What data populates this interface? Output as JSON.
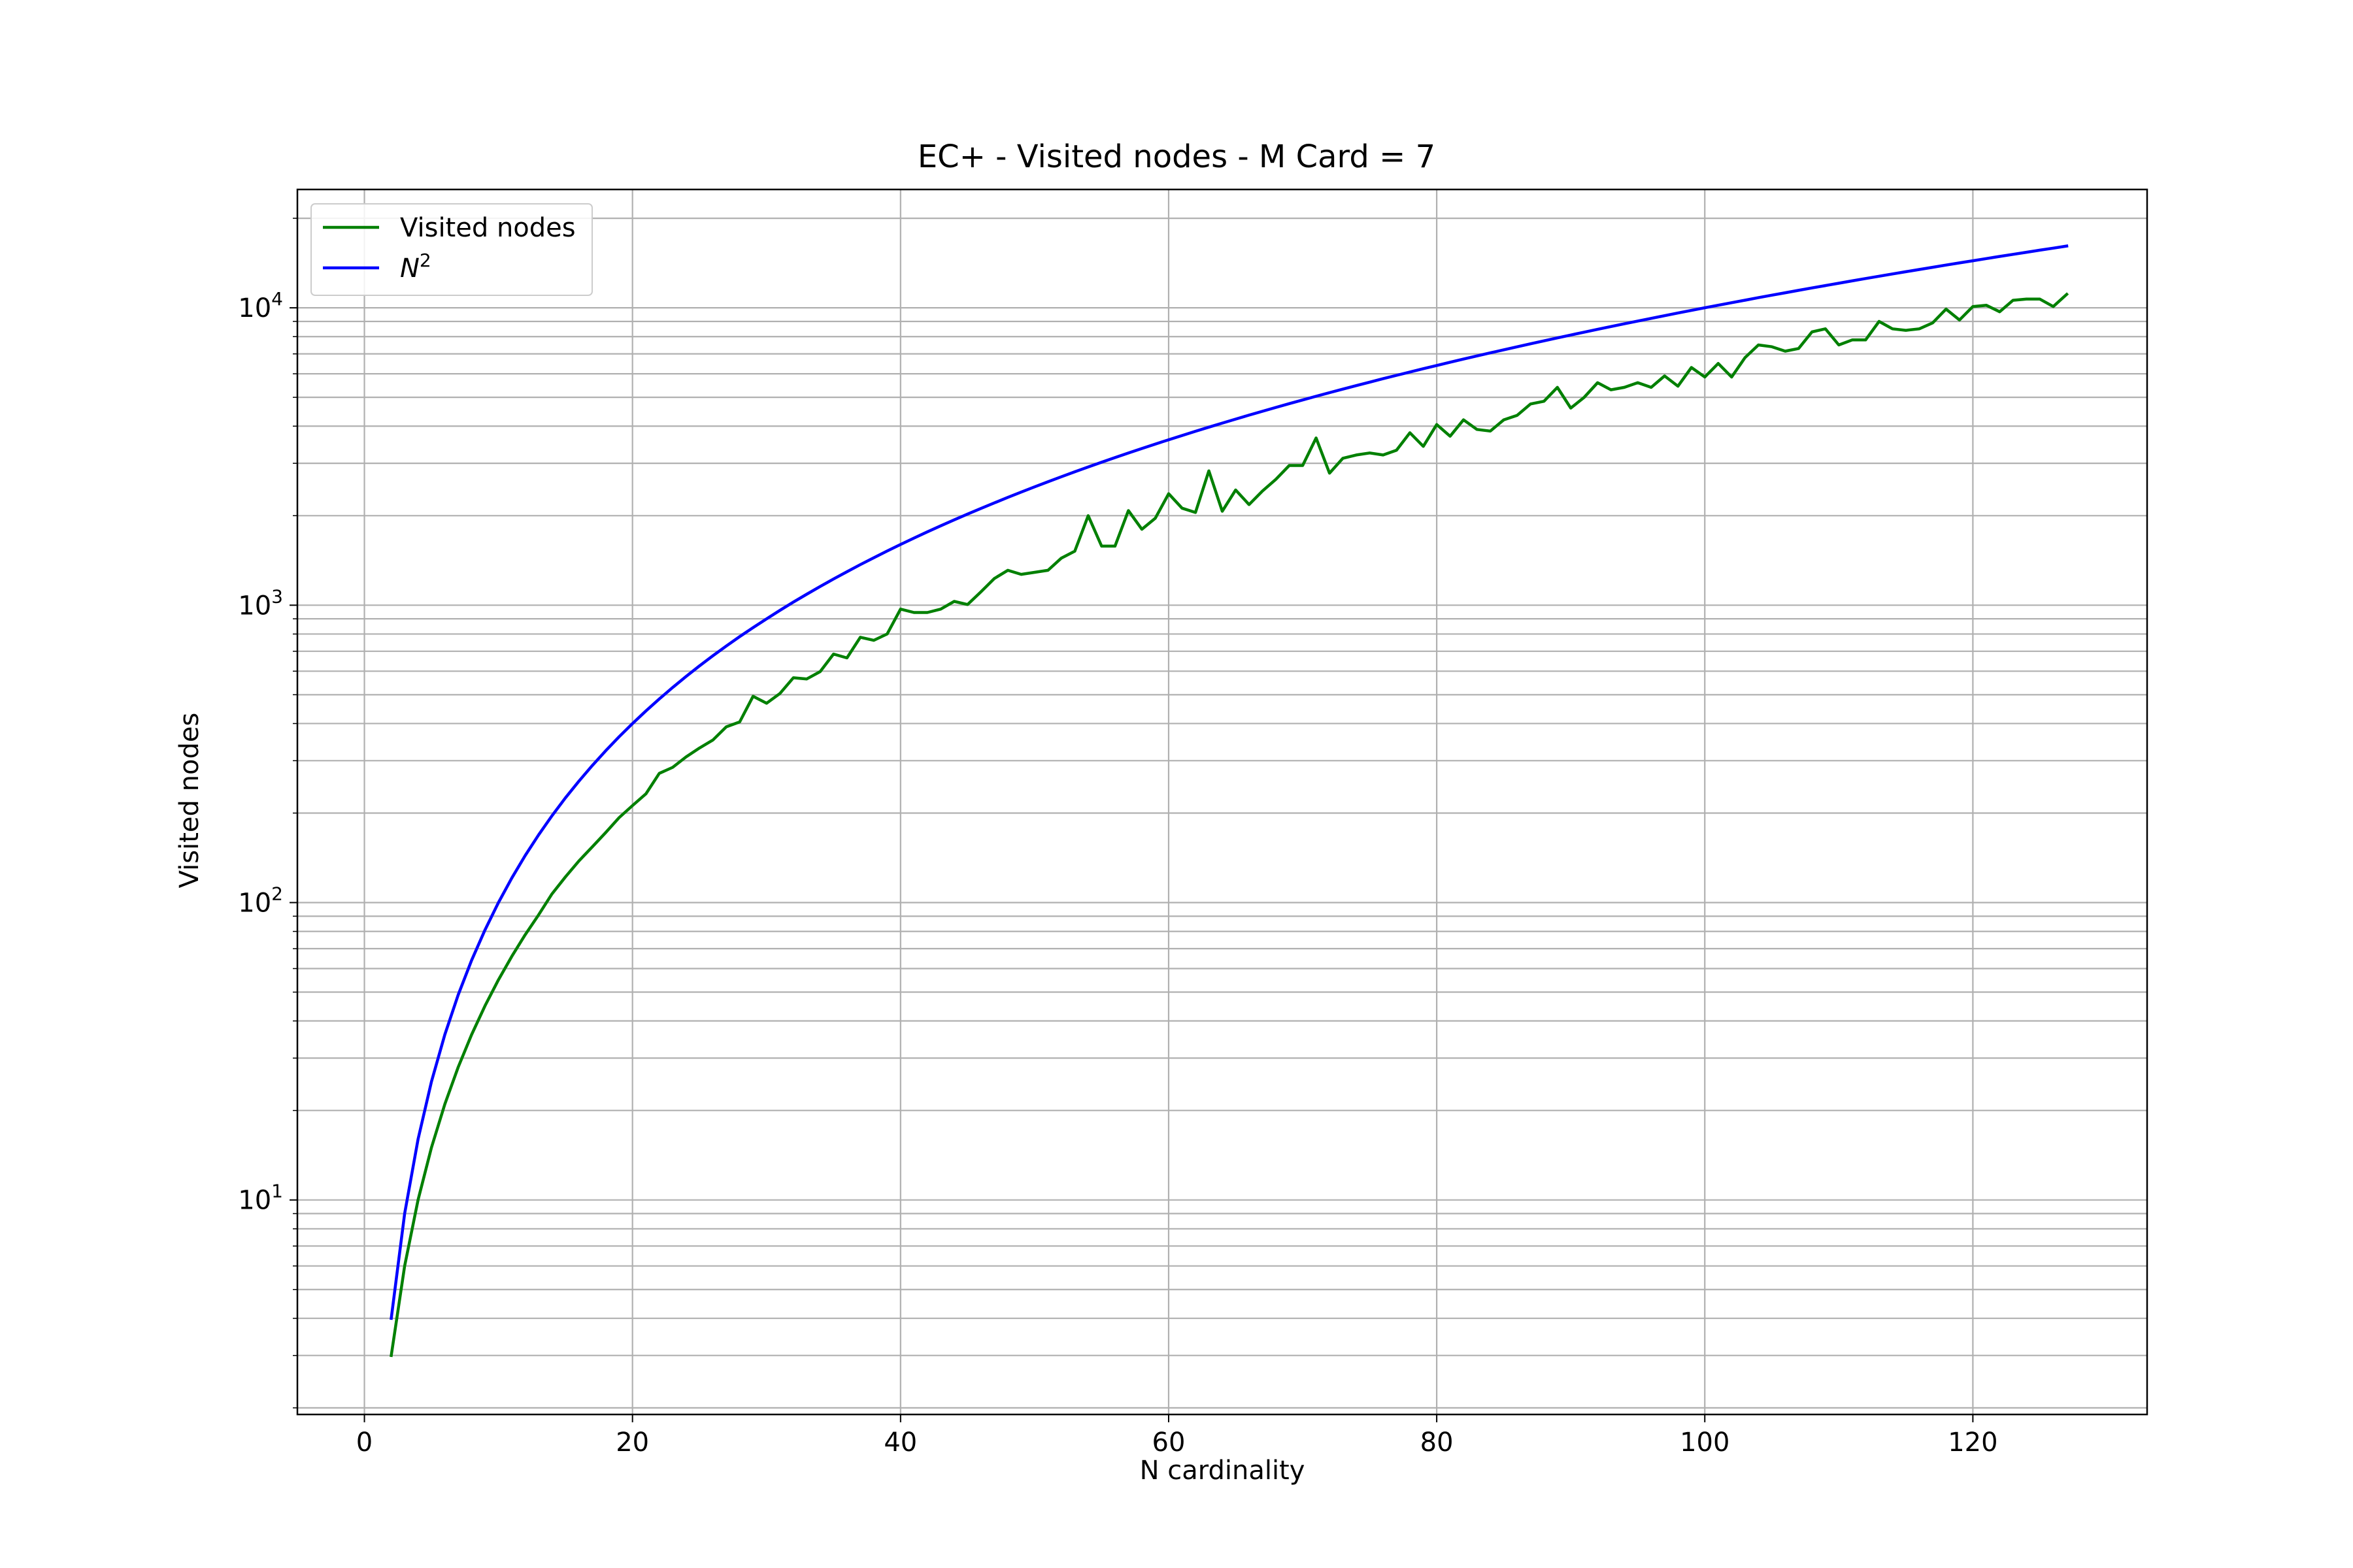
{
  "chart_data": {
    "type": "line",
    "title": "EC+ - Visited nodes - M Card = 7",
    "xlabel": "N cardinality",
    "ylabel": "Visited nodes",
    "xlim": [
      -5,
      133
    ],
    "ylim": [
      1.9,
      25000
    ],
    "yscale": "log",
    "grid": true,
    "legend_position": "top-left",
    "x_ticks": [
      0,
      20,
      40,
      60,
      80,
      100,
      120
    ],
    "x_tick_labels": [
      "0",
      "20",
      "40",
      "60",
      "80",
      "100",
      "120"
    ],
    "y_ticks": [
      10,
      100,
      1000,
      10000
    ],
    "y_tick_labels": [
      {
        "base": "10",
        "exp": "1"
      },
      {
        "base": "10",
        "exp": "2"
      },
      {
        "base": "10",
        "exp": "3"
      },
      {
        "base": "10",
        "exp": "4"
      }
    ],
    "series": [
      {
        "name": "Visited nodes",
        "color": "#008000",
        "x_start": 2,
        "x_step": 1,
        "values": [
          3,
          6,
          10,
          15,
          21,
          28,
          36,
          45,
          55,
          66,
          78,
          91,
          107,
          122,
          138,
          154,
          172,
          193,
          212,
          232,
          272,
          285,
          309,
          331,
          352,
          390,
          405,
          494,
          468,
          505,
          570,
          565,
          598,
          685,
          665,
          780,
          762,
          800,
          970,
          945,
          945,
          970,
          1030,
          1005,
          1110,
          1230,
          1310,
          1270,
          1290,
          1310,
          1440,
          1520,
          2000,
          1580,
          1580,
          2080,
          1800,
          1960,
          2370,
          2120,
          2050,
          2830,
          2070,
          2440,
          2180,
          2420,
          2650,
          2950,
          2950,
          3650,
          2780,
          3120,
          3200,
          3250,
          3200,
          3320,
          3800,
          3420,
          4050,
          3700,
          4200,
          3900,
          3850,
          4200,
          4350,
          4750,
          4850,
          5400,
          4600,
          5000,
          5600,
          5300,
          5400,
          5600,
          5400,
          5900,
          5450,
          6300,
          5850,
          6500,
          5850,
          6800,
          7500,
          7400,
          7150,
          7300,
          8300,
          8500,
          7500,
          7800,
          7800,
          9000,
          8500,
          8400,
          8500,
          8900,
          9900,
          9100,
          10100,
          10200,
          9700,
          10600,
          10700,
          10700,
          10100,
          11100
        ]
      },
      {
        "name": "N^2",
        "legend_base": "N",
        "legend_exp": "2",
        "color": "#0000ff",
        "function": "x^2",
        "x_start": 2,
        "x_end": 127
      }
    ]
  }
}
